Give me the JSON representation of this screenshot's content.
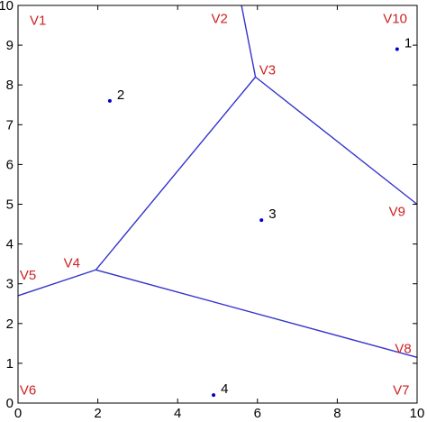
{
  "chart_data": {
    "type": "scatter",
    "title": "",
    "xlabel": "",
    "ylabel": "",
    "xlim": [
      0,
      10
    ],
    "ylim": [
      0,
      10
    ],
    "x_ticks": [
      0,
      2,
      4,
      6,
      8,
      10
    ],
    "x_tick_labels": [
      "0",
      "2",
      "4",
      "6",
      "8",
      "10"
    ],
    "y_ticks": [
      0,
      1,
      2,
      3,
      4,
      5,
      6,
      7,
      8,
      9,
      10
    ],
    "y_tick_labels": [
      "0",
      "1",
      "2",
      "3",
      "4",
      "5",
      "6",
      "7",
      "8",
      "9",
      "10"
    ],
    "grid": false,
    "colors": {
      "edges": "#3333cc",
      "sites": "#0000cc",
      "vertex_labels": "#cc2222",
      "axes": "#000000"
    },
    "sites": [
      {
        "label": "1",
        "x": 9.5,
        "y": 8.9
      },
      {
        "label": "2",
        "x": 2.3,
        "y": 7.6
      },
      {
        "label": "3",
        "x": 6.1,
        "y": 4.6
      },
      {
        "label": "4",
        "x": 4.9,
        "y": 0.2
      }
    ],
    "vertex_labels": [
      {
        "text": "V1",
        "x": 0.5,
        "y": 9.6
      },
      {
        "text": "V2",
        "x": 5.05,
        "y": 9.65
      },
      {
        "text": "V3",
        "x": 6.25,
        "y": 8.35
      },
      {
        "text": "V4",
        "x": 1.35,
        "y": 3.5
      },
      {
        "text": "V5",
        "x": 0.25,
        "y": 3.2
      },
      {
        "text": "V6",
        "x": 0.25,
        "y": 0.3
      },
      {
        "text": "V7",
        "x": 9.6,
        "y": 0.3
      },
      {
        "text": "V8",
        "x": 9.65,
        "y": 1.35
      },
      {
        "text": "V9",
        "x": 9.5,
        "y": 4.8
      },
      {
        "text": "V10",
        "x": 9.45,
        "y": 9.65
      }
    ],
    "edges": [
      {
        "from": [
          5.6,
          10.0
        ],
        "to": [
          5.95,
          8.2
        ]
      },
      {
        "from": [
          5.95,
          8.2
        ],
        "to": [
          10.0,
          5.0
        ]
      },
      {
        "from": [
          5.95,
          8.2
        ],
        "to": [
          1.95,
          3.35
        ]
      },
      {
        "from": [
          1.95,
          3.35
        ],
        "to": [
          0.0,
          2.7
        ]
      },
      {
        "from": [
          1.95,
          3.35
        ],
        "to": [
          10.0,
          1.15
        ]
      }
    ]
  }
}
